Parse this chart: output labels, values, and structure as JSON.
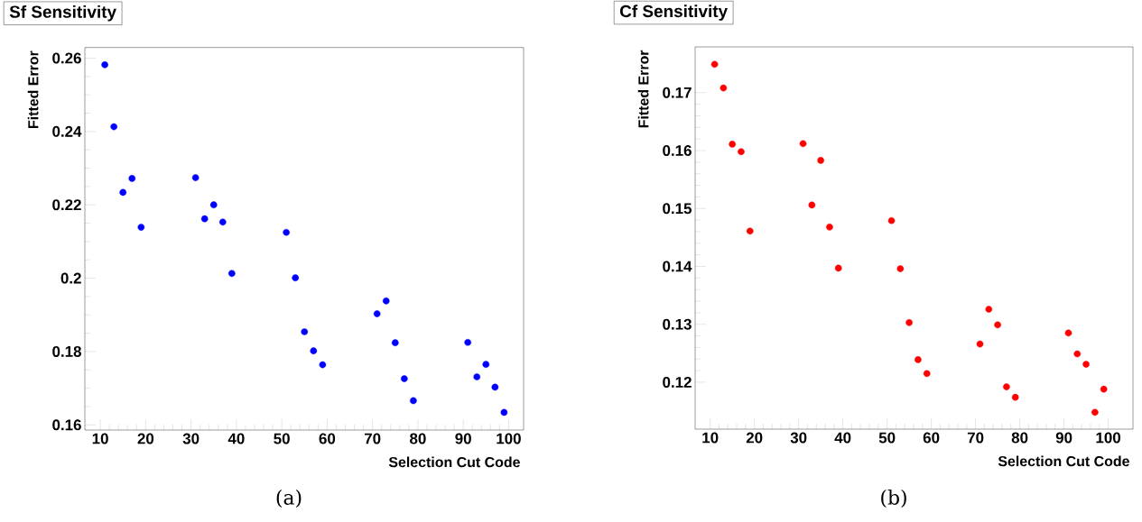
{
  "chart_data": [
    {
      "type": "scatter",
      "title": "Sf Sensitivity",
      "xlabel": "Selection Cut Code",
      "ylabel": "Fitted Error",
      "annotations": [
        "(a)"
      ],
      "grid": false,
      "x": [
        11,
        13,
        15,
        17,
        19,
        31,
        33,
        35,
        37,
        39,
        51,
        53,
        55,
        57,
        59,
        71,
        73,
        75,
        77,
        79,
        91,
        93,
        95,
        97,
        99
      ],
      "series": [
        {
          "color": "#0000ff",
          "values": [
            0.2582,
            0.2413,
            0.2234,
            0.2272,
            0.2139,
            0.2274,
            0.2162,
            0.22,
            0.2153,
            0.2013,
            0.2125,
            0.2001,
            0.1854,
            0.1802,
            0.1764,
            0.1903,
            0.1938,
            0.1824,
            0.1726,
            0.1666,
            0.1825,
            0.1731,
            0.1765,
            0.1703,
            0.1634
          ]
        }
      ],
      "xlim": [
        6.6,
        103.3
      ],
      "ylim": [
        0.1586,
        0.2629
      ],
      "xticks": [
        10,
        20,
        30,
        40,
        50,
        60,
        70,
        80,
        90,
        100
      ],
      "yticks": [
        0.16,
        0.18,
        0.2,
        0.22,
        0.24,
        0.26
      ]
    },
    {
      "type": "scatter",
      "title": "Cf Sensitivity",
      "xlabel": "Selection Cut Code",
      "ylabel": "Fitted Error",
      "annotations": [
        "(b)"
      ],
      "grid": false,
      "x": [
        11,
        13,
        15,
        17,
        19,
        31,
        33,
        35,
        37,
        39,
        51,
        53,
        55,
        57,
        59,
        71,
        73,
        75,
        77,
        79,
        91,
        93,
        95,
        97,
        99
      ],
      "series": [
        {
          "color": "#ff0000",
          "values": [
            0.1749,
            0.1708,
            0.1611,
            0.1598,
            0.1461,
            0.1612,
            0.1506,
            0.1583,
            0.1468,
            0.1397,
            0.1479,
            0.1396,
            0.1303,
            0.1239,
            0.1215,
            0.1266,
            0.1326,
            0.1299,
            0.1192,
            0.1174,
            0.1285,
            0.1249,
            0.1231,
            0.1148,
            0.1188
          ]
        }
      ],
      "xlim": [
        6.6,
        105.6
      ],
      "ylim": [
        0.1119,
        0.1779
      ],
      "xticks": [
        10,
        20,
        30,
        40,
        50,
        60,
        70,
        80,
        90,
        100
      ],
      "yticks": [
        0.12,
        0.13,
        0.14,
        0.15,
        0.16,
        0.17
      ]
    }
  ]
}
